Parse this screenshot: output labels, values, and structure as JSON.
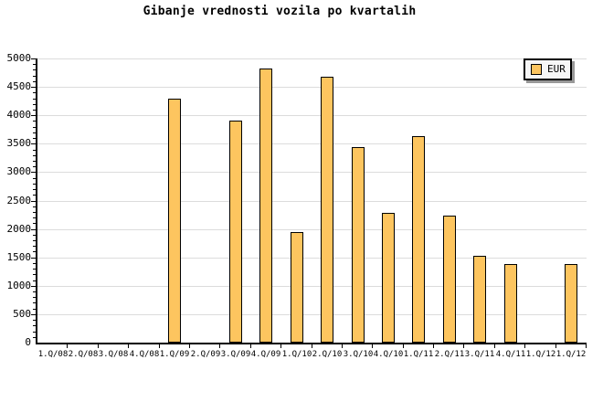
{
  "title": "Gibanje vrednosti vozila po kvartalih",
  "legend": {
    "label": "EUR"
  },
  "y_axis": {
    "tick_labels": [
      "0",
      "500",
      "1000",
      "1500",
      "2000",
      "2500",
      "3000",
      "3500",
      "4000",
      "4500",
      "5000"
    ]
  },
  "chart_data": {
    "type": "bar",
    "title": "Gibanje vrednosti vozila po kvartalih",
    "categories": [
      "1.Q/08",
      "2.Q/08",
      "3.Q/08",
      "4.Q/08",
      "1.Q/09",
      "2.Q/09",
      "3.Q/09",
      "4.Q/09",
      "1.Q/10",
      "2.Q/10",
      "3.Q/10",
      "4.Q/10",
      "1.Q/11",
      "2.Q/11",
      "3.Q/11",
      "4.Q/11",
      "1.Q/12",
      "1.Q/12"
    ],
    "series": [
      {
        "name": "EUR",
        "values": [
          null,
          null,
          null,
          null,
          4300,
          null,
          3900,
          4830,
          1950,
          4680,
          3440,
          2290,
          3630,
          2240,
          1520,
          1390,
          null,
          1390
        ]
      }
    ],
    "ylim": [
      0,
      5000
    ],
    "ytick_step": 500,
    "y_minor_tick_step": 100,
    "grid": "horizontal-major",
    "legend_position": "top-right",
    "colors": {
      "bar_fill": "#FDC55F",
      "bar_border": "#000000",
      "gridline": "#DCDCDC",
      "axis": "#000000",
      "background": "#FFFFFF",
      "legend_bg": "#F6F6F6",
      "legend_shadow": "#999999",
      "text": "#000000"
    }
  }
}
